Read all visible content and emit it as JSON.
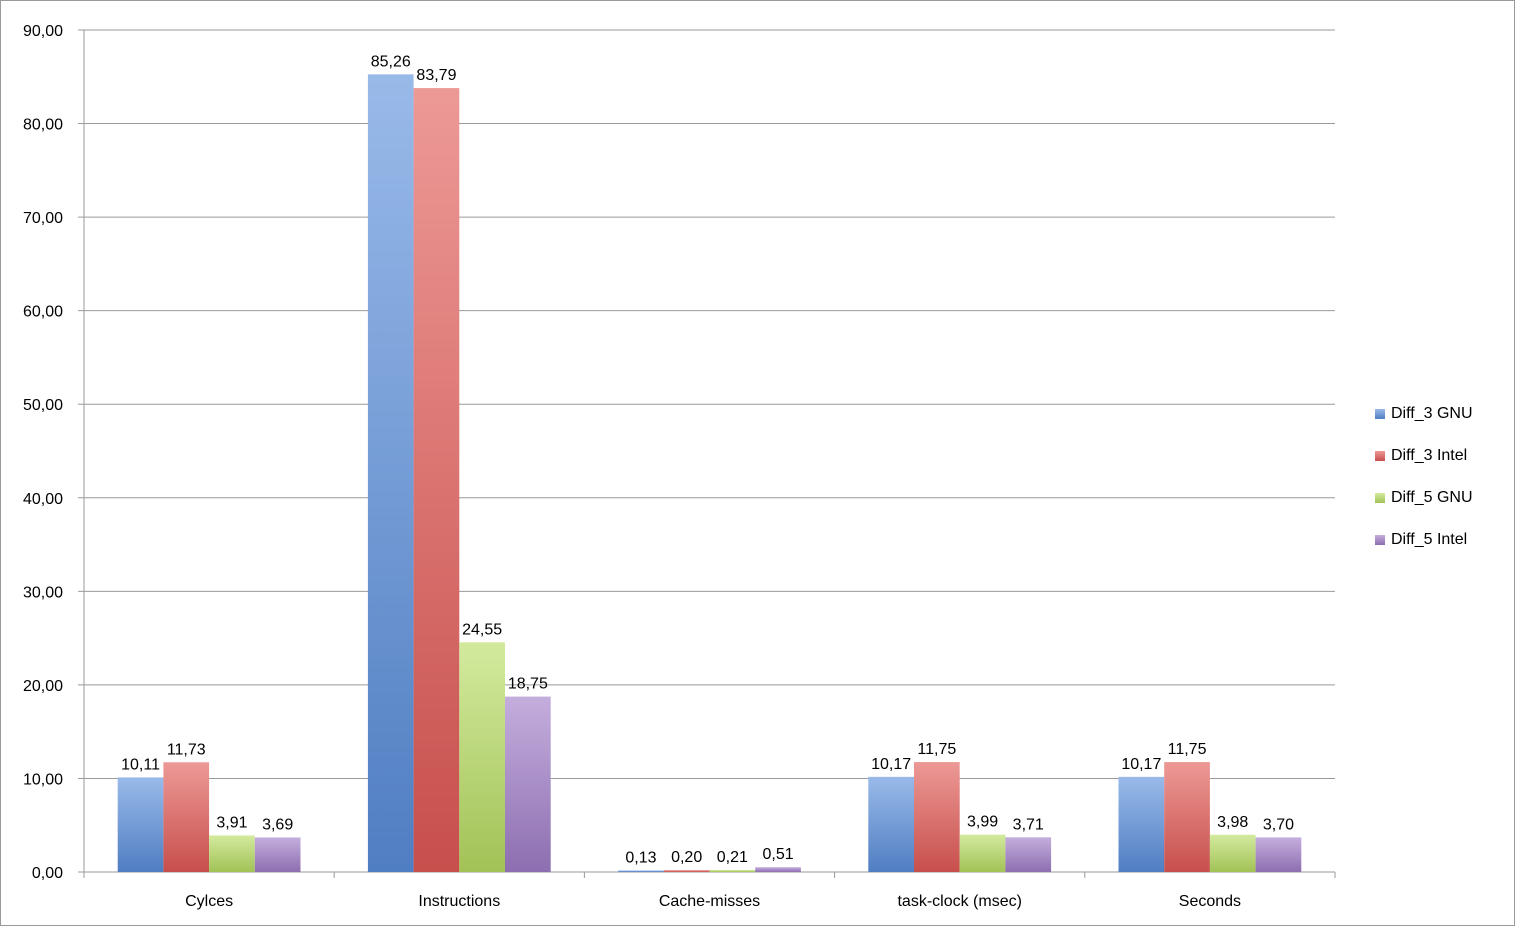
{
  "chart_data": {
    "type": "bar",
    "title": "",
    "xlabel": "",
    "ylabel": "",
    "categories": [
      "Cylces",
      "Instructions",
      "Cache-misses",
      "task-clock (msec)",
      "Seconds"
    ],
    "series": [
      {
        "name": "Diff_3 GNU",
        "color": "#5b8fdc",
        "values": [
          10.11,
          85.26,
          0.13,
          10.17,
          10.17
        ],
        "labels": [
          "10,11",
          "85,26",
          "0,13",
          "10,17",
          "10,17"
        ]
      },
      {
        "name": "Diff_3 Intel",
        "color": "#e25a56",
        "values": [
          11.73,
          83.79,
          0.2,
          11.75,
          11.75
        ],
        "labels": [
          "11,73",
          "83,79",
          "0,20",
          "11,75",
          "11,75"
        ]
      },
      {
        "name": "Diff_5 GNU",
        "color": "#b8dd62",
        "values": [
          3.91,
          24.55,
          0.21,
          3.99,
          3.98
        ],
        "labels": [
          "3,91",
          "24,55",
          "0,21",
          "3,99",
          "3,98"
        ]
      },
      {
        "name": "Diff_5 Intel",
        "color": "#a07dc8",
        "values": [
          3.69,
          18.75,
          0.51,
          3.71,
          3.7
        ],
        "labels": [
          "3,69",
          "18,75",
          "0,51",
          "3,71",
          "3,70"
        ]
      }
    ],
    "ylim": [
      0,
      90
    ],
    "yticks": [
      0,
      10,
      20,
      30,
      40,
      50,
      60,
      70,
      80,
      90
    ],
    "ytick_labels": [
      "0,00",
      "10,00",
      "20,00",
      "30,00",
      "40,00",
      "50,00",
      "60,00",
      "70,00",
      "80,00",
      "90,00"
    ],
    "grid": true,
    "legend_position": "right"
  }
}
